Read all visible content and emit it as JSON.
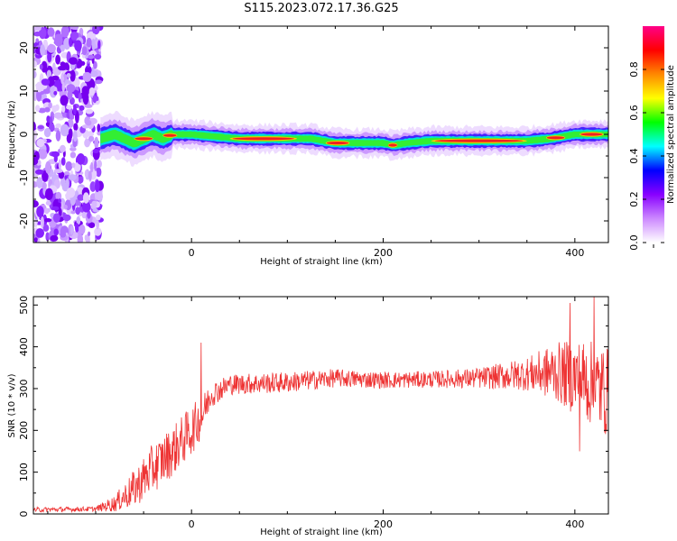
{
  "title": "S115.2023.072.17.36.G25",
  "chart_data": [
    {
      "type": "heatmap",
      "xlabel": "Height of straight line (km)",
      "ylabel": "Frequency (Hz)",
      "xlim": [
        -165,
        435
      ],
      "ylim": [
        -25,
        25
      ],
      "xticks": [
        0,
        200,
        400
      ],
      "yticks": [
        -20,
        -10,
        0,
        10,
        20
      ],
      "colorbar": {
        "label": "Normalized spectral amplitude",
        "range": [
          0,
          1
        ],
        "ticks": [
          0.0,
          0.2,
          0.4,
          0.6,
          0.8
        ],
        "colors": [
          "#ffffff",
          "#cc88ff",
          "#8800ff",
          "#0000ff",
          "#00ffff",
          "#00ff00",
          "#ffff00",
          "#ff8800",
          "#ff0000",
          "#ff0088"
        ]
      },
      "ridge": {
        "x": [
          -95,
          -80,
          -70,
          -60,
          -50,
          -40,
          -30,
          -20,
          -10,
          0,
          25,
          50,
          100,
          125,
          150,
          175,
          200,
          210,
          225,
          250,
          300,
          350,
          375,
          400,
          435
        ],
        "freq": [
          -1,
          0,
          -1,
          -2,
          -1,
          0,
          -1,
          0,
          0,
          0,
          -0.5,
          -1,
          -1,
          -1,
          -2,
          -2,
          -2,
          -2.5,
          -2,
          -1.5,
          -1.5,
          -1.5,
          -1,
          0,
          0
        ]
      },
      "noise_region_xlim": [
        -165,
        -95
      ]
    },
    {
      "type": "line",
      "xlabel": "Height of straight line (km)",
      "ylabel": "SNR (10 * v/v)",
      "xlim": [
        -165,
        435
      ],
      "ylim": [
        0,
        520
      ],
      "xticks": [
        0,
        200,
        400
      ],
      "yticks": [
        0,
        100,
        200,
        300,
        400,
        500
      ],
      "color": "#ee3333",
      "envelope": {
        "x": [
          -165,
          -100,
          -80,
          -60,
          -40,
          -20,
          0,
          10,
          20,
          40,
          100,
          150,
          200,
          250,
          300,
          350,
          380,
          410,
          435
        ],
        "mean": [
          10,
          12,
          25,
          60,
          110,
          150,
          200,
          230,
          285,
          310,
          315,
          325,
          320,
          322,
          325,
          335,
          340,
          320,
          290
        ],
        "amp": [
          6,
          6,
          20,
          45,
          60,
          60,
          60,
          50,
          30,
          25,
          25,
          22,
          20,
          20,
          25,
          40,
          70,
          100,
          110
        ]
      },
      "spikes": [
        {
          "x": 10,
          "y": 410
        },
        {
          "x": 395,
          "y": 505
        },
        {
          "x": 405,
          "y": 150
        },
        {
          "x": 420,
          "y": 520
        }
      ]
    }
  ]
}
